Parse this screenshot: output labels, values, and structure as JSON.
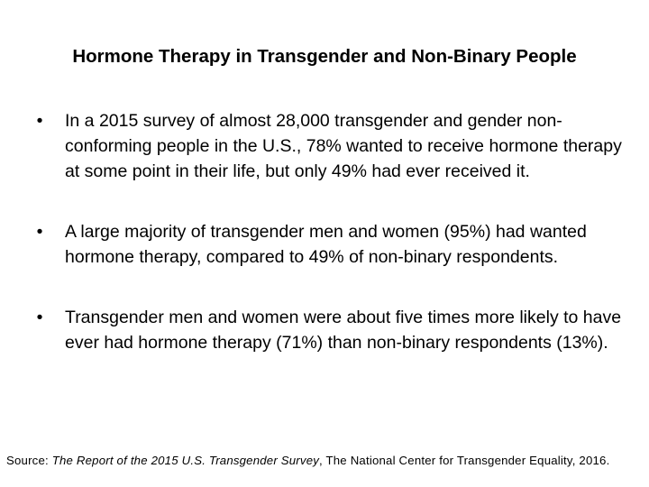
{
  "slide": {
    "title": "Hormone Therapy in Transgender and Non-Binary People",
    "bullet_glyph": "•",
    "bullets": [
      "In a 2015 survey of almost 28,000 transgender and gender non-conforming people in the U.S., 78% wanted to receive hormone therapy at some point in their life, but only 49% had ever received it.",
      "A large majority of transgender men and women (95%) had wanted hormone therapy, compared to 49% of non-binary respondents.",
      "Transgender men and women were about five times more likely to have ever had hormone therapy (71%) than non-binary respondents (13%)."
    ]
  },
  "source": {
    "prefix": "Source:  ",
    "title": "The Report of the 2015 U.S. Transgender Survey",
    "suffix": ", The National Center for Transgender Equality, 2016."
  }
}
